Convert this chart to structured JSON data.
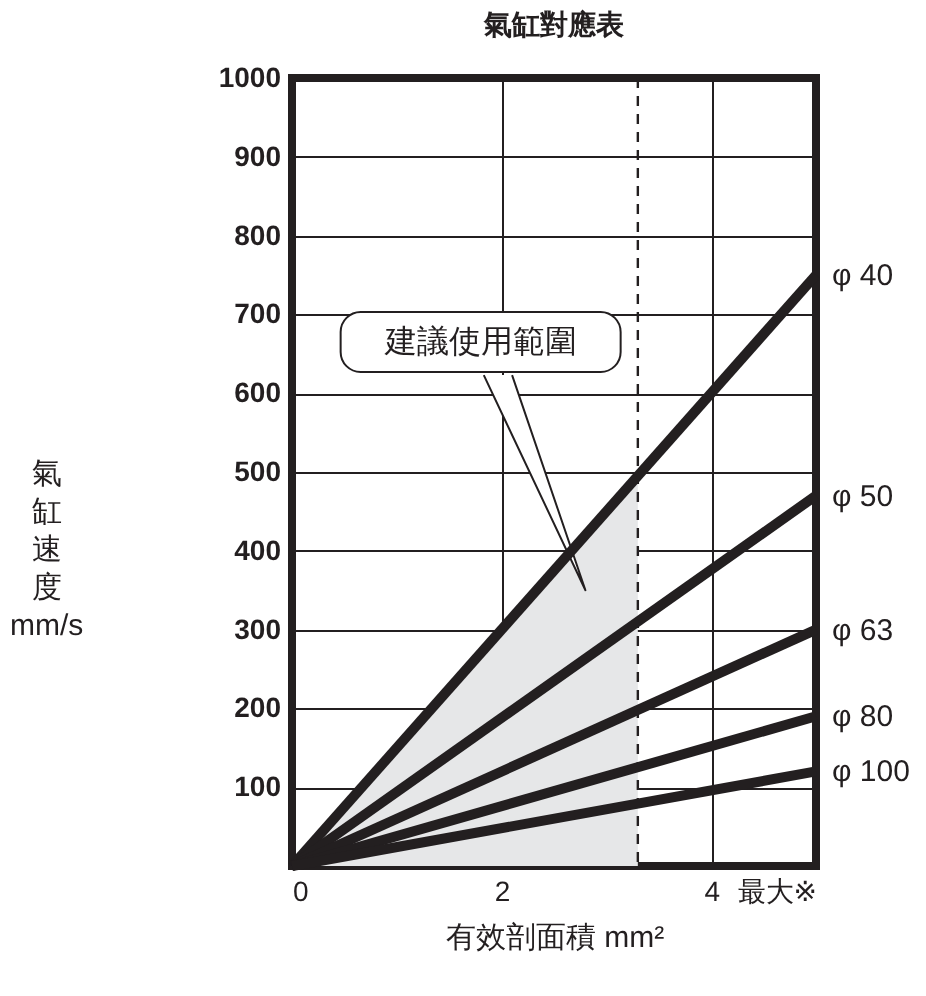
{
  "chart_data": {
    "type": "line",
    "title": "氣缸對應表",
    "xlabel": "有效剖面積 mm²",
    "ylabel": "氣缸速度 mm/s",
    "x": [
      0,
      5
    ],
    "series": [
      {
        "type": "area",
        "color": "#e6e7e8",
        "x": [
          0,
          3.3
        ],
        "values": [
          0,
          495
        ]
      },
      {
        "name": "φ 40",
        "color": "#231f20",
        "values": [
          0,
          750
        ]
      },
      {
        "name": "φ 50",
        "color": "#231f20",
        "values": [
          0,
          470
        ]
      },
      {
        "name": "φ 63",
        "color": "#231f20",
        "values": [
          0,
          300
        ]
      },
      {
        "name": "φ 80",
        "color": "#231f20",
        "values": [
          0,
          190
        ]
      },
      {
        "name": "φ 100",
        "color": "#231f20",
        "values": [
          0,
          120
        ]
      }
    ],
    "xlim": [
      0,
      5
    ],
    "xticks": [
      0,
      2,
      4,
      {
        "value": 5,
        "label": "最大※"
      }
    ],
    "ylim": [
      0,
      1000
    ],
    "yticks": [
      100,
      200,
      300,
      400,
      500,
      600,
      700,
      800,
      900,
      {
        "value": 1000,
        "label": "1000"
      }
    ],
    "grid": true,
    "marker": "none",
    "line_style": "solid",
    "ref_lines": [
      {
        "axis": "x",
        "value": 3.3,
        "line_style": "dashed",
        "color": "#231f20"
      }
    ],
    "annotations": [
      "建議使用範圍"
    ]
  }
}
